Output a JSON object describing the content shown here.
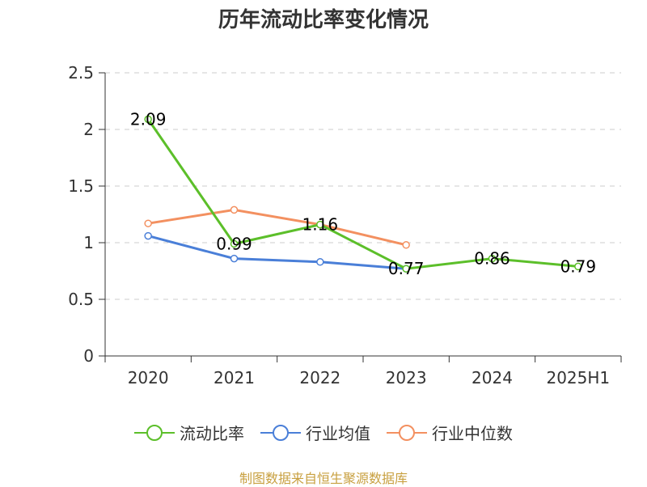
{
  "title": "历年流动比率变化情况",
  "source": "制图数据来自恒生聚源数据库",
  "colors": {
    "grid": "#cccccc",
    "axis": "#333333"
  },
  "chart_data": {
    "type": "line",
    "categories": [
      "2020",
      "2021",
      "2022",
      "2023",
      "2024",
      "2025H1"
    ],
    "ylim": [
      0,
      2.5
    ],
    "yticks": [
      "0",
      "0.5",
      "1",
      "1.5",
      "2",
      "2.5"
    ],
    "grid": "horizontal dashed",
    "legend_position": "bottom",
    "series": [
      {
        "name": "流动比率",
        "color": "#5cbf2a",
        "values": [
          2.09,
          0.99,
          1.16,
          0.77,
          0.86,
          0.79
        ],
        "labels": [
          "2.09",
          "0.99",
          "1.16",
          "0.77",
          "0.86",
          "0.79"
        ]
      },
      {
        "name": "行业均值",
        "color": "#4a7fd8",
        "values": [
          1.06,
          0.86,
          0.83,
          0.77,
          null,
          null
        ]
      },
      {
        "name": "行业中位数",
        "color": "#f39060",
        "values": [
          1.17,
          1.29,
          1.16,
          0.98,
          null,
          null
        ]
      }
    ]
  }
}
